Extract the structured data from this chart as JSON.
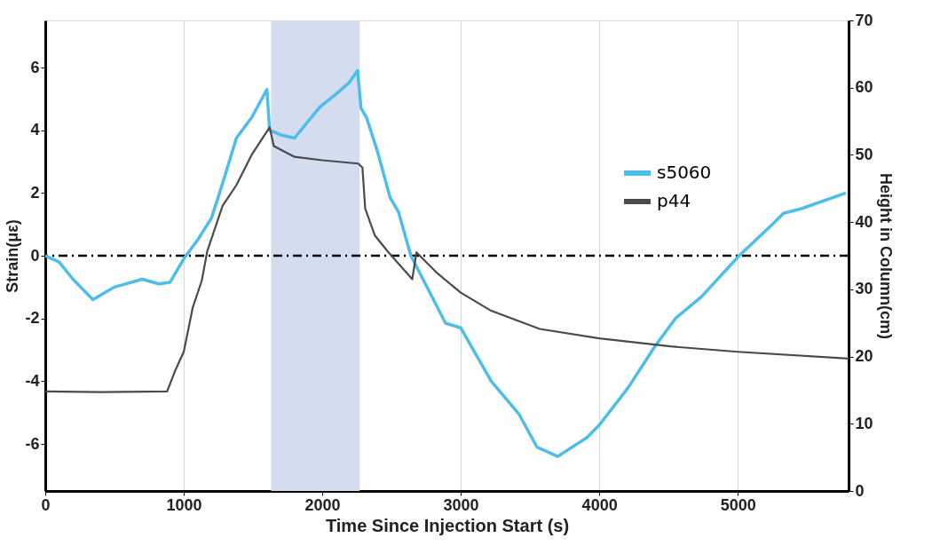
{
  "chart_data": {
    "type": "line",
    "xlabel": "Time Since Injection Start (s)",
    "ylabel": "Strain(με)",
    "y2label": "Height in Column(cm)",
    "xlim": [
      0,
      5800
    ],
    "xticks": [
      0,
      1000,
      2000,
      3000,
      4000,
      5000
    ],
    "ylim": [
      -7.5,
      7.5
    ],
    "yticks": [
      -6,
      -4,
      -2,
      0,
      2,
      4,
      6
    ],
    "y2lim": [
      0,
      70
    ],
    "y2ticks": [
      0,
      10,
      20,
      30,
      40,
      50,
      60,
      70
    ],
    "grid": "x",
    "legend": "top right",
    "bands": [
      {
        "axis": "x",
        "from": 1630,
        "to": 2270,
        "color": "#d3ddef"
      }
    ],
    "ref_lines": [
      {
        "axis": "y",
        "value": 0,
        "color": "#000000",
        "line_style": "dashdot"
      }
    ],
    "series": [
      {
        "name": "s5060",
        "color": "#4dbde9",
        "x": [
          0,
          100,
          200,
          344,
          500,
          700,
          820,
          900,
          1000,
          1100,
          1200,
          1280,
          1380,
          1490,
          1600,
          1620,
          1700,
          1800,
          1900,
          1985,
          2085,
          2190,
          2255,
          2280,
          2320,
          2400,
          2490,
          2550,
          2640,
          2890,
          3000,
          3220,
          3420,
          3550,
          3700,
          3910,
          4000,
          4210,
          4400,
          4550,
          4740,
          5010,
          5250,
          5330,
          5460,
          5780
        ],
        "values": [
          0,
          -0.2,
          -0.75,
          -1.4,
          -1.0,
          -0.75,
          -0.9,
          -0.85,
          -0.1,
          0.5,
          1.2,
          2.3,
          3.75,
          4.4,
          5.3,
          4.0,
          3.85,
          3.75,
          4.3,
          4.75,
          5.1,
          5.5,
          5.9,
          4.7,
          4.4,
          3.3,
          1.85,
          1.4,
          0,
          -2.15,
          -2.3,
          -4.0,
          -5.05,
          -6.1,
          -6.4,
          -5.8,
          -5.4,
          -4.2,
          -2.9,
          -2.0,
          -1.3,
          0,
          1.0,
          1.35,
          1.5,
          2.0
        ]
      },
      {
        "name": "p44",
        "color": "#4a4a4a",
        "axis": "y2",
        "x": [
          0,
          400,
          880,
          940,
          1000,
          1065,
          1130,
          1170,
          1280,
          1380,
          1490,
          1620,
          1650,
          1800,
          2000,
          2260,
          2290,
          2310,
          2380,
          2470,
          2650,
          2680,
          2830,
          3000,
          3220,
          3570,
          4000,
          4515,
          5000,
          5800
        ],
        "values": [
          14.8,
          14.7,
          14.8,
          18.0,
          20.7,
          27.3,
          31.3,
          35.7,
          42.4,
          45.5,
          50.0,
          54.1,
          51.3,
          49.7,
          49.2,
          48.7,
          48.1,
          42.0,
          38.0,
          35.7,
          31.5,
          35.5,
          32.4,
          29.5,
          26.8,
          24.1,
          22.7,
          21.5,
          20.7,
          19.7
        ]
      }
    ]
  }
}
